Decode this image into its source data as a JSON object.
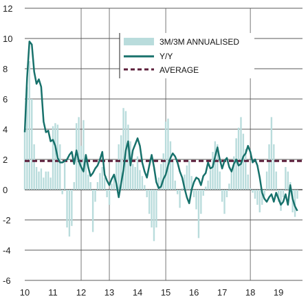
{
  "chart_data": {
    "type": "bar+line",
    "title": "",
    "xlabel": "",
    "ylabel": "",
    "ylim": [
      -6,
      12
    ],
    "yticks": [
      -6,
      -4,
      -2,
      0,
      2,
      4,
      6,
      8,
      10,
      12
    ],
    "xlim": [
      2010.0,
      2019.85
    ],
    "xticks": [
      "10",
      "11",
      "12",
      "13",
      "14",
      "15",
      "16",
      "17",
      "18",
      "19"
    ],
    "grid": "horizontal lines plus vertical separators at 12, 13, 15, 18",
    "vlines": [
      2012,
      2013,
      2015,
      2018
    ],
    "legend_position": "top-right",
    "colors": {
      "bars": "#b9dcdc",
      "line": "#17716b",
      "average": "#5c1f3b",
      "grid": "#222222",
      "tick": "#222222"
    },
    "series": [
      {
        "name": "3M/3M ANNUALISED",
        "kind": "bar",
        "x": [
          2010.0,
          2010.083,
          2010.167,
          2010.25,
          2010.333,
          2010.417,
          2010.5,
          2010.583,
          2010.667,
          2010.75,
          2010.833,
          2010.917,
          2011.0,
          2011.083,
          2011.167,
          2011.25,
          2011.333,
          2011.417,
          2011.5,
          2011.583,
          2011.667,
          2011.75,
          2011.833,
          2011.917,
          2012.0,
          2012.083,
          2012.167,
          2012.25,
          2012.333,
          2012.417,
          2012.5,
          2012.583,
          2012.667,
          2012.75,
          2012.833,
          2012.917,
          2013.0,
          2013.083,
          2013.167,
          2013.25,
          2013.333,
          2013.417,
          2013.5,
          2013.583,
          2013.667,
          2013.75,
          2013.833,
          2013.917,
          2014.0,
          2014.083,
          2014.167,
          2014.25,
          2014.333,
          2014.417,
          2014.5,
          2014.583,
          2014.667,
          2014.75,
          2014.833,
          2014.917,
          2015.0,
          2015.083,
          2015.167,
          2015.25,
          2015.333,
          2015.417,
          2015.5,
          2015.583,
          2015.667,
          2015.75,
          2015.833,
          2015.917,
          2016.0,
          2016.083,
          2016.167,
          2016.25,
          2016.333,
          2016.417,
          2016.5,
          2016.583,
          2016.667,
          2016.75,
          2016.833,
          2016.917,
          2017.0,
          2017.083,
          2017.167,
          2017.25,
          2017.333,
          2017.417,
          2017.5,
          2017.583,
          2017.667,
          2017.75,
          2017.833,
          2017.917,
          2018.0,
          2018.083,
          2018.167,
          2018.25,
          2018.333,
          2018.417,
          2018.5,
          2018.583,
          2018.667,
          2018.75,
          2018.833,
          2018.917,
          2019.0,
          2019.083,
          2019.167,
          2019.25,
          2019.333,
          2019.417,
          2019.5,
          2019.583,
          2019.667
        ],
        "values": [
          4.0,
          6.8,
          8.5,
          6.0,
          3.0,
          1.5,
          1.2,
          1.4,
          0.8,
          1.2,
          1.2,
          0.8,
          4.2,
          4.4,
          4.3,
          3.0,
          -0.3,
          1.8,
          -2.5,
          -3.1,
          -2.4,
          0.5,
          4.4,
          4.8,
          2.9,
          4.6,
          2.2,
          1.0,
          0.5,
          -2.8,
          -0.8,
          0.5,
          1.1,
          1.5,
          0.8,
          -0.5,
          -1.0,
          0.4,
          0.9,
          1.8,
          3.0,
          3.6,
          5.4,
          5.2,
          4.3,
          3.2,
          1.7,
          1.5,
          2.2,
          1.3,
          0.9,
          0.3,
          -0.5,
          -1.6,
          -2.5,
          -3.4,
          -2.5,
          0.8,
          1.7,
          2.4,
          4.5,
          4.7,
          3.2,
          1.9,
          0.6,
          -0.3,
          -1.2,
          0.1,
          1.0,
          1.6,
          1.9,
          0.9,
          -0.5,
          -1.3,
          -3.2,
          -1.6,
          -0.4,
          0.2,
          0.6,
          1.3,
          2.5,
          3.2,
          3.0,
          1.2,
          -0.8,
          -1.6,
          -0.5,
          0.4,
          1.3,
          2.2,
          3.4,
          4.1,
          4.8,
          3.7,
          2.7,
          1.0,
          0.1,
          -0.2,
          -0.6,
          -1.0,
          -1.5,
          -1.0,
          -0.4,
          1.2,
          3.0,
          4.8,
          3.0,
          1.2,
          -0.8,
          -1.4,
          -0.5,
          1.5,
          1.2,
          0.5,
          -1.5,
          -1.8,
          -0.6
        ]
      },
      {
        "name": "Y/Y",
        "kind": "line",
        "x": [
          2010.0,
          2010.083,
          2010.167,
          2010.25,
          2010.333,
          2010.417,
          2010.5,
          2010.583,
          2010.667,
          2010.75,
          2010.833,
          2010.917,
          2011.0,
          2011.083,
          2011.167,
          2011.25,
          2011.333,
          2011.417,
          2011.5,
          2011.583,
          2011.667,
          2011.75,
          2011.833,
          2011.917,
          2012.0,
          2012.083,
          2012.167,
          2012.25,
          2012.333,
          2012.417,
          2012.5,
          2012.583,
          2012.667,
          2012.75,
          2012.833,
          2012.917,
          2013.0,
          2013.083,
          2013.167,
          2013.25,
          2013.333,
          2013.417,
          2013.5,
          2013.583,
          2013.667,
          2013.75,
          2013.833,
          2013.917,
          2014.0,
          2014.083,
          2014.167,
          2014.25,
          2014.333,
          2014.417,
          2014.5,
          2014.583,
          2014.667,
          2014.75,
          2014.833,
          2014.917,
          2015.0,
          2015.083,
          2015.167,
          2015.25,
          2015.333,
          2015.417,
          2015.5,
          2015.583,
          2015.667,
          2015.75,
          2015.833,
          2015.917,
          2016.0,
          2016.083,
          2016.167,
          2016.25,
          2016.333,
          2016.417,
          2016.5,
          2016.583,
          2016.667,
          2016.75,
          2016.833,
          2016.917,
          2017.0,
          2017.083,
          2017.167,
          2017.25,
          2017.333,
          2017.417,
          2017.5,
          2017.583,
          2017.667,
          2017.75,
          2017.833,
          2017.917,
          2018.0,
          2018.083,
          2018.167,
          2018.25,
          2018.333,
          2018.417,
          2018.5,
          2018.583,
          2018.667,
          2018.75,
          2018.833,
          2018.917,
          2019.0,
          2019.083,
          2019.167,
          2019.25,
          2019.333,
          2019.417,
          2019.5,
          2019.583,
          2019.667
        ],
        "values": [
          3.8,
          7.4,
          9.8,
          9.6,
          7.8,
          7.0,
          7.3,
          6.8,
          4.5,
          3.8,
          3.9,
          3.2,
          3.3,
          2.9,
          2.1,
          1.8,
          1.8,
          1.9,
          2.0,
          2.3,
          2.5,
          1.7,
          2.6,
          1.9,
          1.5,
          1.2,
          2.3,
          1.5,
          0.9,
          1.1,
          1.4,
          1.6,
          2.0,
          2.5,
          1.0,
          0.6,
          0.3,
          0.7,
          1.0,
          0.4,
          -0.5,
          0.4,
          1.3,
          2.6,
          3.2,
          1.6,
          2.6,
          3.0,
          3.4,
          2.9,
          1.8,
          1.2,
          0.8,
          1.6,
          2.3,
          1.5,
          0.5,
          0.1,
          0.2,
          0.7,
          1.0,
          1.6,
          2.1,
          2.4,
          2.2,
          1.8,
          1.2,
          0.8,
          0.1,
          -0.5,
          -0.9,
          0.0,
          0.5,
          0.8,
          0.7,
          0.3,
          0.9,
          1.1,
          1.8,
          1.4,
          1.5,
          2.2,
          2.8,
          2.0,
          1.4,
          1.9,
          2.1,
          1.5,
          1.2,
          1.7,
          2.0,
          1.6,
          1.7,
          2.2,
          2.4,
          2.9,
          2.5,
          1.8,
          2.0,
          1.6,
          0.8,
          -0.2,
          -0.6,
          -0.8,
          -0.5,
          -0.3,
          -0.8,
          -0.2,
          -0.6,
          -1.0,
          -0.8,
          -0.3,
          -1.0,
          0.3,
          -0.6,
          -1.1,
          -1.4
        ]
      },
      {
        "name": "AVERAGE",
        "kind": "hline",
        "value": 1.9
      }
    ]
  }
}
